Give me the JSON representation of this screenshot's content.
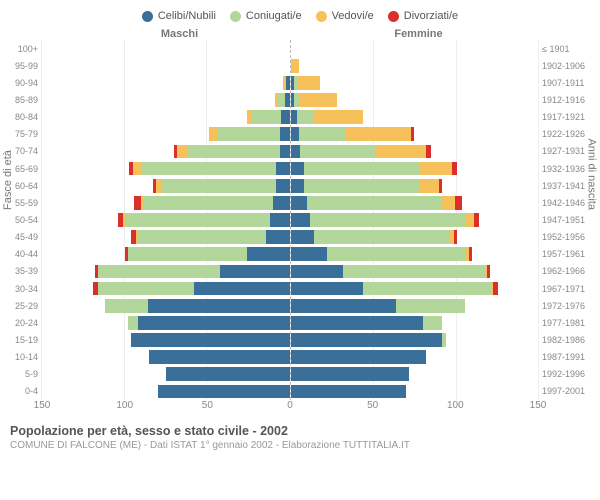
{
  "legend": [
    {
      "label": "Celibi/Nubili",
      "color": "#3a6f9a"
    },
    {
      "label": "Coniugati/e",
      "color": "#b3d69b"
    },
    {
      "label": "Vedovi/e",
      "color": "#f6c15b"
    },
    {
      "label": "Divorziati/e",
      "color": "#d9302c"
    }
  ],
  "header": {
    "male": "Maschi",
    "female": "Femmine"
  },
  "axis": {
    "left_title": "Fasce di età",
    "right_title": "Anni di nascita",
    "xmax": 150,
    "xticks": [
      150,
      100,
      50,
      0,
      50,
      100,
      150
    ]
  },
  "footer": {
    "title": "Popolazione per età, sesso e stato civile - 2002",
    "sub": "COMUNE DI FALCONE (ME) - Dati ISTAT 1° gennaio 2002 - Elaborazione TUTTITALIA.IT"
  },
  "colors": {
    "celibi": "#3a6f9a",
    "coniugati": "#b3d69b",
    "vedovi": "#f6c15b",
    "divorziati": "#d9302c",
    "grid": "#eeeeee",
    "dash": "#bbbbbb"
  },
  "rows": [
    {
      "age": "100+",
      "birth": "≤ 1901",
      "m": [
        0,
        0,
        0,
        0
      ],
      "f": [
        0,
        0,
        0,
        0
      ]
    },
    {
      "age": "95-99",
      "birth": "1902-1906",
      "m": [
        0,
        0,
        0,
        0
      ],
      "f": [
        0,
        0,
        5,
        0
      ]
    },
    {
      "age": "90-94",
      "birth": "1907-1911",
      "m": [
        2,
        0,
        2,
        0
      ],
      "f": [
        2,
        2,
        14,
        0
      ]
    },
    {
      "age": "85-89",
      "birth": "1912-1916",
      "m": [
        3,
        4,
        2,
        0
      ],
      "f": [
        2,
        4,
        22,
        0
      ]
    },
    {
      "age": "80-84",
      "birth": "1917-1921",
      "m": [
        5,
        18,
        3,
        0
      ],
      "f": [
        4,
        10,
        30,
        0
      ]
    },
    {
      "age": "75-79",
      "birth": "1922-1926",
      "m": [
        6,
        38,
        5,
        0
      ],
      "f": [
        5,
        28,
        40,
        2
      ]
    },
    {
      "age": "70-74",
      "birth": "1927-1931",
      "m": [
        6,
        56,
        6,
        2
      ],
      "f": [
        6,
        46,
        30,
        3
      ]
    },
    {
      "age": "65-69",
      "birth": "1932-1936",
      "m": [
        8,
        82,
        5,
        2
      ],
      "f": [
        8,
        70,
        20,
        3
      ]
    },
    {
      "age": "60-64",
      "birth": "1937-1941",
      "m": [
        8,
        70,
        3,
        2
      ],
      "f": [
        8,
        70,
        12,
        2
      ]
    },
    {
      "age": "55-59",
      "birth": "1942-1946",
      "m": [
        10,
        78,
        2,
        4
      ],
      "f": [
        10,
        82,
        8,
        4
      ]
    },
    {
      "age": "50-54",
      "birth": "1947-1951",
      "m": [
        12,
        88,
        1,
        3
      ],
      "f": [
        12,
        94,
        5,
        3
      ]
    },
    {
      "age": "45-49",
      "birth": "1952-1956",
      "m": [
        14,
        78,
        1,
        3
      ],
      "f": [
        14,
        82,
        3,
        2
      ]
    },
    {
      "age": "40-44",
      "birth": "1957-1961",
      "m": [
        26,
        72,
        0,
        2
      ],
      "f": [
        22,
        84,
        2,
        2
      ]
    },
    {
      "age": "35-39",
      "birth": "1962-1966",
      "m": [
        42,
        74,
        0,
        2
      ],
      "f": [
        32,
        86,
        1,
        2
      ]
    },
    {
      "age": "30-34",
      "birth": "1967-1971",
      "m": [
        58,
        58,
        0,
        3
      ],
      "f": [
        44,
        78,
        1,
        3
      ]
    },
    {
      "age": "25-29",
      "birth": "1972-1976",
      "m": [
        86,
        26,
        0,
        0
      ],
      "f": [
        64,
        42,
        0,
        0
      ]
    },
    {
      "age": "20-24",
      "birth": "1977-1981",
      "m": [
        92,
        6,
        0,
        0
      ],
      "f": [
        80,
        12,
        0,
        0
      ]
    },
    {
      "age": "15-19",
      "birth": "1982-1986",
      "m": [
        96,
        0,
        0,
        0
      ],
      "f": [
        92,
        2,
        0,
        0
      ]
    },
    {
      "age": "10-14",
      "birth": "1987-1991",
      "m": [
        85,
        0,
        0,
        0
      ],
      "f": [
        82,
        0,
        0,
        0
      ]
    },
    {
      "age": "5-9",
      "birth": "1992-1996",
      "m": [
        75,
        0,
        0,
        0
      ],
      "f": [
        72,
        0,
        0,
        0
      ]
    },
    {
      "age": "0-4",
      "birth": "1997-2001",
      "m": [
        80,
        0,
        0,
        0
      ],
      "f": [
        70,
        0,
        0,
        0
      ]
    }
  ]
}
